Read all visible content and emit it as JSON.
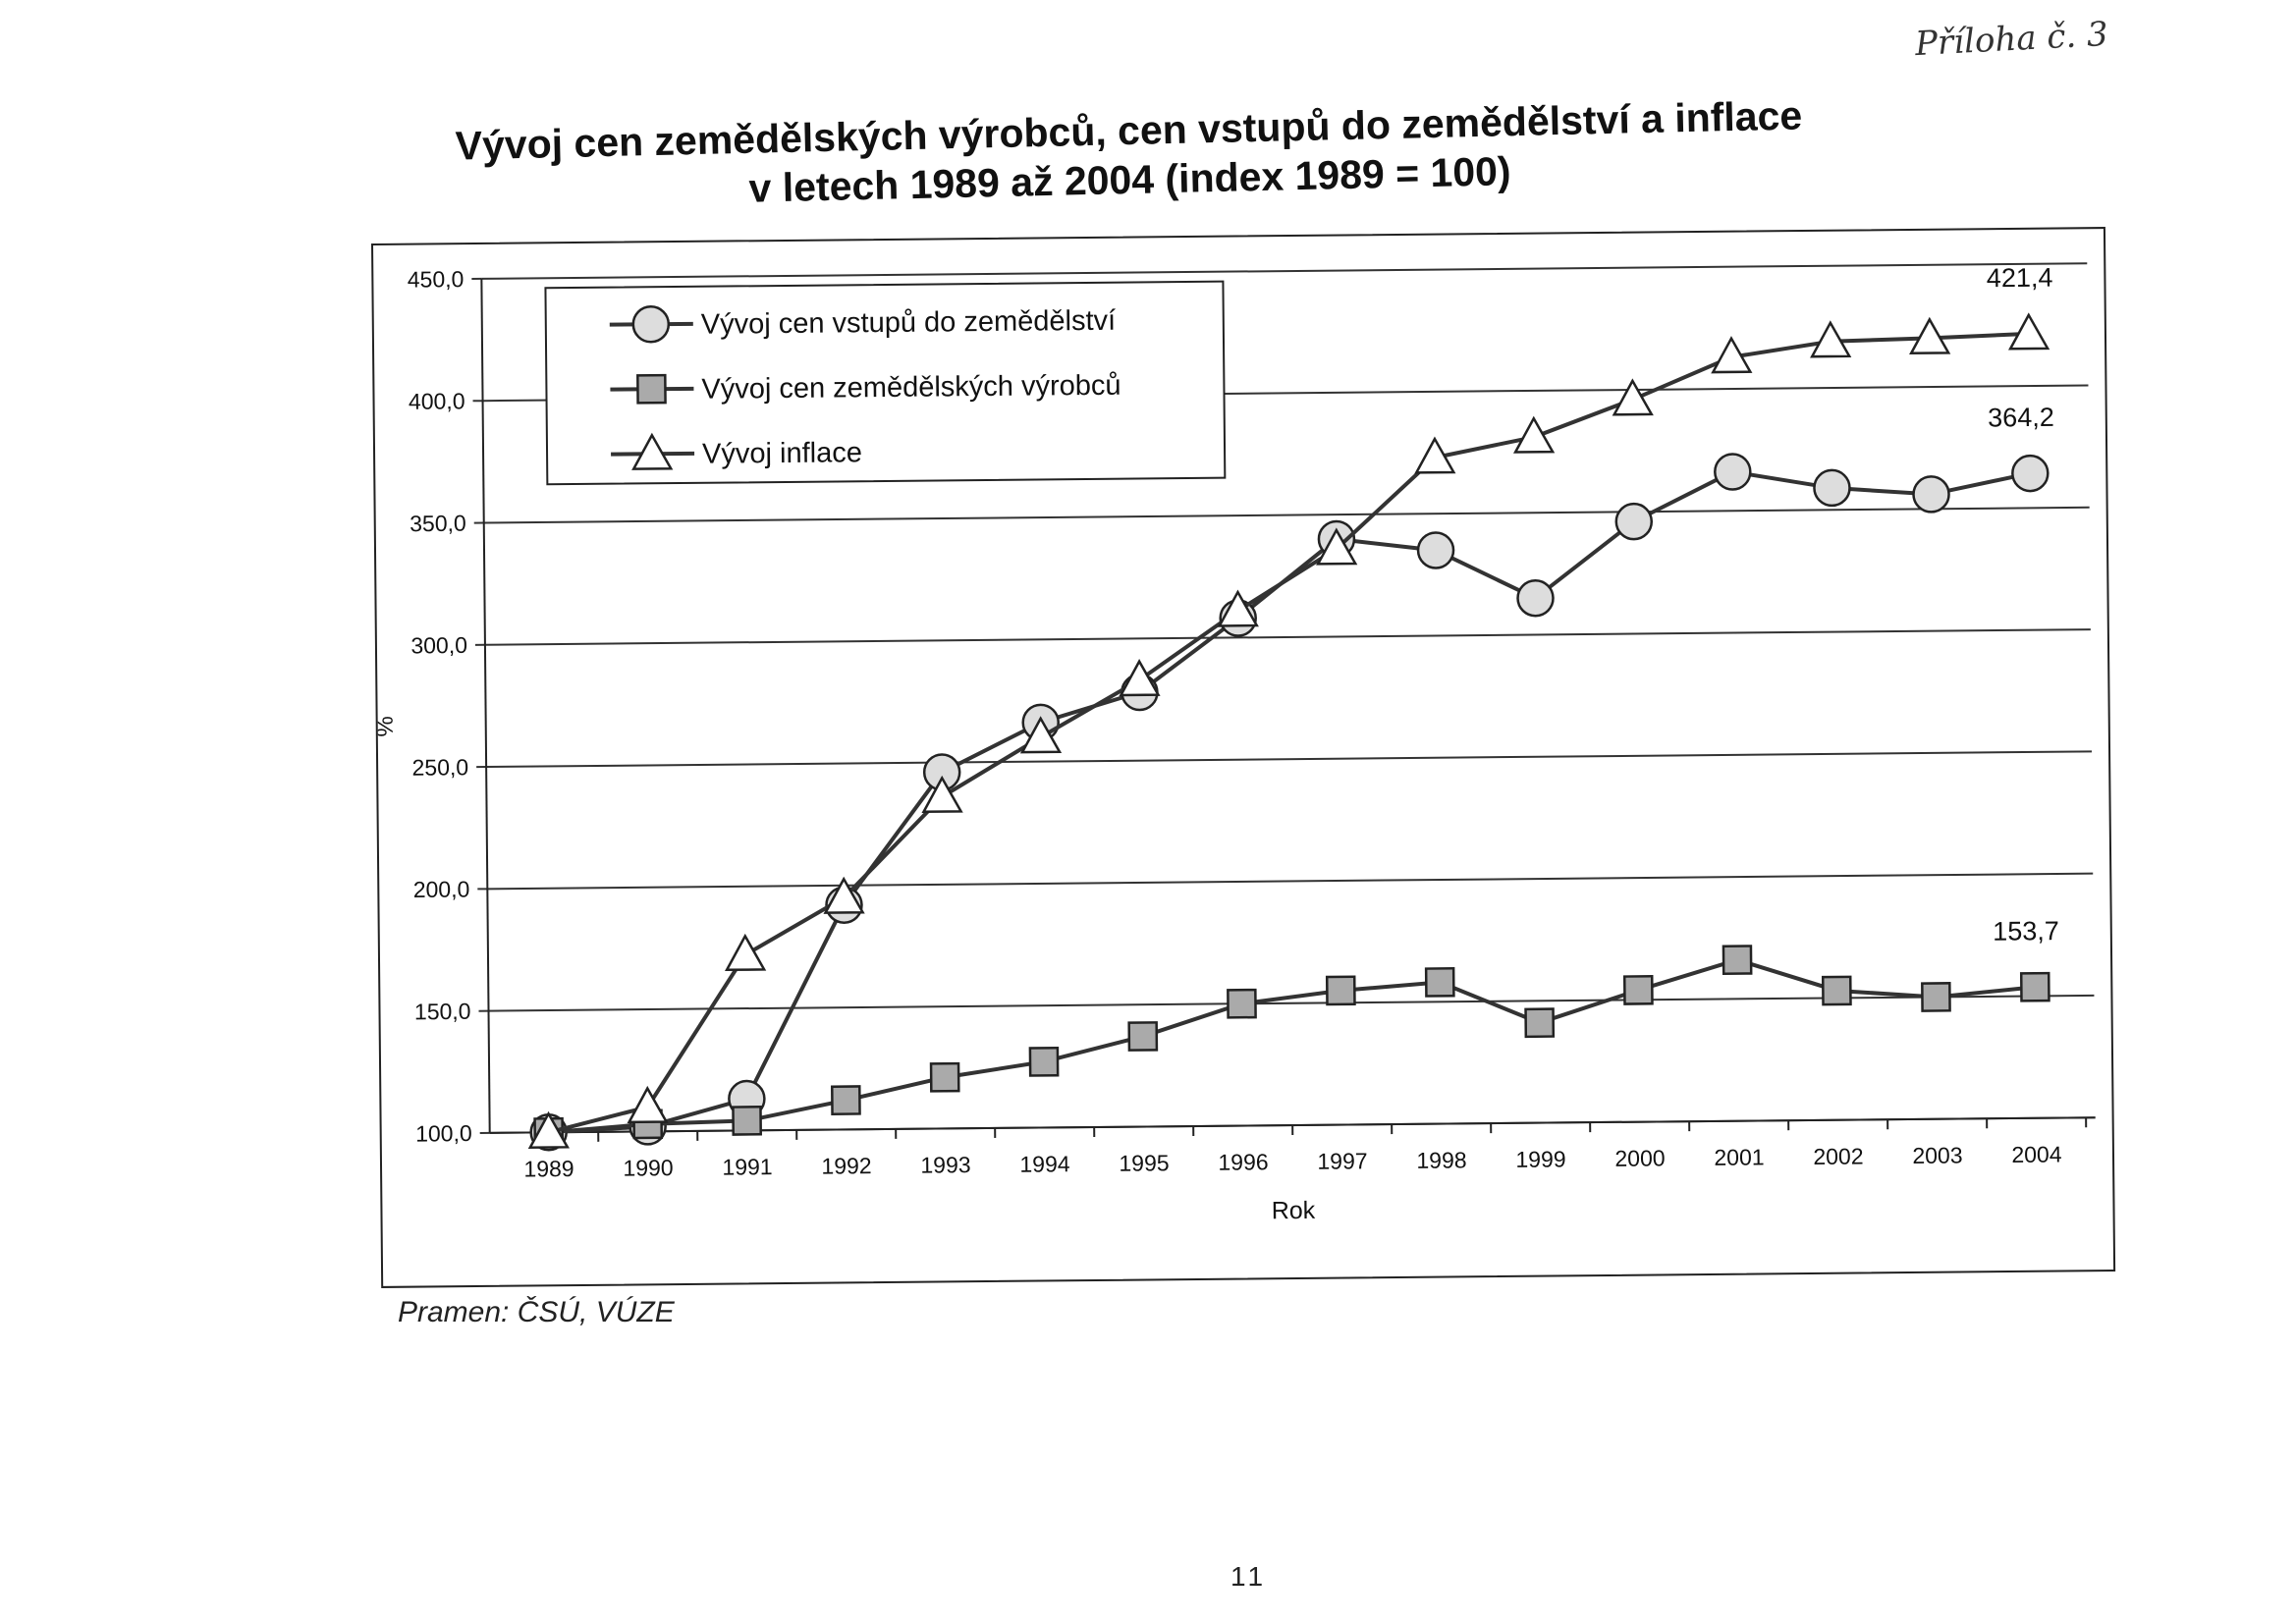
{
  "annex_note": "Příloha č. 3",
  "title_line1": "Vývoj cen zemědělských výrobců, cen vstupů do zemědělství a inflace",
  "title_line2": "v letech 1989 až 2004 (index 1989 = 100)",
  "source_note": "Pramen: ČSÚ, VÚZE",
  "page_number": "11",
  "chart_data": {
    "type": "line",
    "title": "Vývoj cen zemědělských výrobců, cen vstupů do zemědělství a inflace v letech 1989 až 2004 (index 1989 = 100)",
    "xlabel": "Rok",
    "ylabel": "%",
    "ylim": [
      100,
      450
    ],
    "yticks": [
      "100,0",
      "150,0",
      "200,0",
      "250,0",
      "300,0",
      "350,0",
      "400,0",
      "450,0"
    ],
    "grid": true,
    "legend_position": "top-left",
    "categories": [
      "1989",
      "1990",
      "1991",
      "1992",
      "1993",
      "1994",
      "1995",
      "1996",
      "1997",
      "1998",
      "1999",
      "2000",
      "2001",
      "2002",
      "2003",
      "2004"
    ],
    "series": [
      {
        "name": "Vývoj cen vstupů do zemědělství",
        "marker": "circle",
        "values": [
          100,
          102,
          113,
          192,
          246,
          266,
          278,
          308,
          340,
          335,
          315,
          346,
          366,
          359,
          356,
          364.2
        ],
        "end_label": "364,2"
      },
      {
        "name": "Vývoj cen zemědělských výrobců",
        "marker": "square",
        "values": [
          100,
          103,
          104,
          112,
          121,
          127,
          137,
          150,
          155,
          158,
          141,
          154,
          166,
          153,
          150,
          153.7
        ],
        "end_label": "153,7"
      },
      {
        "name": "Vývoj inflace",
        "marker": "triangle",
        "values": [
          100,
          110,
          172,
          195,
          236,
          260,
          283,
          311,
          336,
          373,
          381,
          396,
          413,
          419,
          420,
          421.4
        ],
        "end_label": "421,4"
      }
    ],
    "colors": {
      "line": "#333333",
      "marker_fill": "#dddddd",
      "marker_stroke": "#222222",
      "grid": "#333333"
    }
  }
}
